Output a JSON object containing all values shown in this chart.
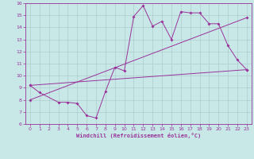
{
  "x_values": [
    0,
    1,
    2,
    3,
    4,
    5,
    6,
    7,
    8,
    9,
    10,
    11,
    12,
    13,
    14,
    15,
    16,
    17,
    18,
    19,
    20,
    21,
    22,
    23
  ],
  "series1": [
    9.2,
    8.6,
    null,
    7.8,
    7.8,
    7.7,
    6.7,
    6.5,
    8.7,
    10.7,
    10.4,
    14.9,
    15.8,
    14.1,
    14.5,
    13.0,
    15.3,
    15.2,
    15.2,
    14.3,
    14.3,
    12.5,
    11.3,
    10.5
  ],
  "series2_x": [
    0,
    23
  ],
  "series2_y": [
    9.2,
    10.5
  ],
  "series3_x": [
    0,
    23
  ],
  "series3_y": [
    8.0,
    14.8
  ],
  "color": "#993399",
  "bg_color": "#c8e8e8",
  "grid_color": "#b0cccc",
  "xlabel": "Windchill (Refroidissement éolien,°C)",
  "ylim": [
    6,
    16
  ],
  "xlim": [
    -0.5,
    23.5
  ],
  "yticks": [
    6,
    7,
    8,
    9,
    10,
    11,
    12,
    13,
    14,
    15,
    16
  ],
  "xticks": [
    0,
    1,
    2,
    3,
    4,
    5,
    6,
    7,
    8,
    9,
    10,
    11,
    12,
    13,
    14,
    15,
    16,
    17,
    18,
    19,
    20,
    21,
    22,
    23
  ]
}
